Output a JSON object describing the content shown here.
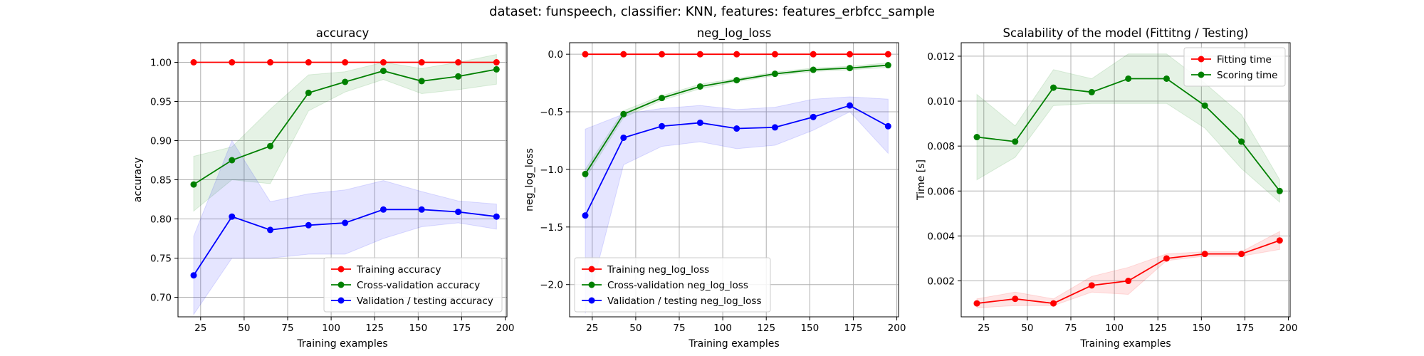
{
  "suptitle": "dataset: funspeech, classifier: KNN, features: features_erbfcc_sample",
  "colors": {
    "red": "#ff0000",
    "green": "#008000",
    "blue": "#0000ff"
  },
  "chart_data": [
    {
      "type": "line",
      "title": "accuracy",
      "xlabel": "Training examples",
      "ylabel": "accuracy",
      "xlim": [
        12,
        201
      ],
      "ylim": [
        0.675,
        1.025
      ],
      "xticks": [
        25,
        50,
        75,
        100,
        125,
        150,
        175,
        200
      ],
      "yticks": [
        0.7,
        0.75,
        0.8,
        0.85,
        0.9,
        0.95,
        1.0
      ],
      "ytick_labels": [
        "0.70",
        "0.75",
        "0.80",
        "0.85",
        "0.90",
        "0.95",
        "1.00"
      ],
      "grid": true,
      "legend_position": "lower-right",
      "x": [
        21,
        43,
        65,
        87,
        108,
        130,
        152,
        173,
        195
      ],
      "series": [
        {
          "name": "Training accuracy",
          "color": "#ff0000",
          "values": [
            1.0,
            1.0,
            1.0,
            1.0,
            1.0,
            1.0,
            1.0,
            1.0,
            1.0
          ],
          "band_lower": [
            1.0,
            1.0,
            1.0,
            1.0,
            1.0,
            1.0,
            1.0,
            1.0,
            1.0
          ],
          "band_upper": [
            1.0,
            1.0,
            1.0,
            1.0,
            1.0,
            1.0,
            1.0,
            1.0,
            1.0
          ]
        },
        {
          "name": "Cross-validation accuracy",
          "color": "#008000",
          "values": [
            0.844,
            0.875,
            0.893,
            0.961,
            0.975,
            0.989,
            0.976,
            0.982,
            0.991
          ],
          "band_lower": [
            0.81,
            0.85,
            0.845,
            0.938,
            0.962,
            0.978,
            0.96,
            0.965,
            0.972
          ],
          "band_upper": [
            0.88,
            0.892,
            0.94,
            0.984,
            0.988,
            1.0,
            0.992,
            1.0,
            1.01
          ]
        },
        {
          "name": "Validation / testing accuracy",
          "color": "#0000ff",
          "values": [
            0.728,
            0.803,
            0.786,
            0.792,
            0.795,
            0.812,
            0.812,
            0.809,
            0.803
          ],
          "band_lower": [
            0.678,
            0.75,
            0.75,
            0.755,
            0.755,
            0.775,
            0.79,
            0.795,
            0.787
          ],
          "band_upper": [
            0.778,
            0.9,
            0.822,
            0.832,
            0.837,
            0.849,
            0.835,
            0.823,
            0.819
          ]
        }
      ]
    },
    {
      "type": "line",
      "title": "neg_log_loss",
      "xlabel": "Training examples",
      "ylabel": "neg_log_loss",
      "xlim": [
        12,
        201
      ],
      "ylim": [
        -2.28,
        0.1
      ],
      "xticks": [
        25,
        50,
        75,
        100,
        125,
        150,
        175,
        200
      ],
      "yticks": [
        -2.0,
        -1.5,
        -1.0,
        -0.5,
        0.0
      ],
      "ytick_labels": [
        "−2.0",
        "−1.5",
        "−1.0",
        "−0.5",
        "0.0"
      ],
      "grid": true,
      "legend_position": "lower-left",
      "x": [
        21,
        43,
        65,
        87,
        108,
        130,
        152,
        173,
        195
      ],
      "series": [
        {
          "name": "Training neg_log_loss",
          "color": "#ff0000",
          "values": [
            0,
            0,
            0,
            0,
            0,
            0,
            0,
            0,
            0
          ],
          "band_lower": [
            0,
            0,
            0,
            0,
            0,
            0,
            0,
            0,
            0
          ],
          "band_upper": [
            0,
            0,
            0,
            0,
            0,
            0,
            0,
            0,
            0
          ]
        },
        {
          "name": "Cross-validation neg_log_loss",
          "color": "#008000",
          "values": [
            -1.04,
            -0.52,
            -0.38,
            -0.28,
            -0.225,
            -0.17,
            -0.135,
            -0.12,
            -0.095
          ],
          "band_lower": [
            -1.08,
            -0.55,
            -0.4,
            -0.3,
            -0.24,
            -0.185,
            -0.15,
            -0.135,
            -0.115
          ],
          "band_upper": [
            -1.0,
            -0.49,
            -0.36,
            -0.26,
            -0.21,
            -0.155,
            -0.12,
            -0.105,
            -0.075
          ]
        },
        {
          "name": "Validation / testing neg_log_loss",
          "color": "#0000ff",
          "values": [
            -1.4,
            -0.725,
            -0.625,
            -0.595,
            -0.645,
            -0.635,
            -0.545,
            -0.445,
            -0.625
          ],
          "band_lower": [
            -2.25,
            -0.96,
            -0.8,
            -0.76,
            -0.82,
            -0.79,
            -0.66,
            -0.5,
            -0.86
          ],
          "band_upper": [
            -0.65,
            -0.52,
            -0.47,
            -0.445,
            -0.48,
            -0.46,
            -0.39,
            -0.37,
            -0.39
          ]
        }
      ]
    },
    {
      "type": "line",
      "title": "Scalability of the model (Fittitng / Testing)",
      "xlabel": "Training examples",
      "ylabel": "Time [s]",
      "xlim": [
        12,
        201
      ],
      "ylim": [
        0.0004,
        0.0126
      ],
      "xticks": [
        25,
        50,
        75,
        100,
        125,
        150,
        175,
        200
      ],
      "yticks": [
        0.002,
        0.004,
        0.006,
        0.008,
        0.01,
        0.012
      ],
      "ytick_labels": [
        "0.002",
        "0.004",
        "0.006",
        "0.008",
        "0.010",
        "0.012"
      ],
      "grid": true,
      "legend_position": "upper-right",
      "x": [
        21,
        43,
        65,
        87,
        108,
        130,
        152,
        173,
        195
      ],
      "series": [
        {
          "name": "Fitting time",
          "color": "#ff0000",
          "values": [
            0.001,
            0.0012,
            0.001,
            0.0018,
            0.002,
            0.003,
            0.0032,
            0.0032,
            0.0038
          ],
          "band_lower": [
            0.0008,
            0.0009,
            0.0009,
            0.0015,
            0.0014,
            0.0029,
            0.0031,
            0.0031,
            0.0034
          ],
          "band_upper": [
            0.0012,
            0.0015,
            0.0012,
            0.0022,
            0.0026,
            0.0032,
            0.0033,
            0.0033,
            0.0042
          ]
        },
        {
          "name": "Scoring time",
          "color": "#008000",
          "values": [
            0.0084,
            0.0082,
            0.0106,
            0.0104,
            0.011,
            0.011,
            0.0098,
            0.0082,
            0.006
          ],
          "band_lower": [
            0.0065,
            0.0075,
            0.0098,
            0.0099,
            0.0099,
            0.0099,
            0.0088,
            0.007,
            0.0055
          ],
          "band_upper": [
            0.0103,
            0.0089,
            0.0114,
            0.011,
            0.0121,
            0.0121,
            0.0108,
            0.0094,
            0.0065
          ]
        }
      ]
    }
  ]
}
